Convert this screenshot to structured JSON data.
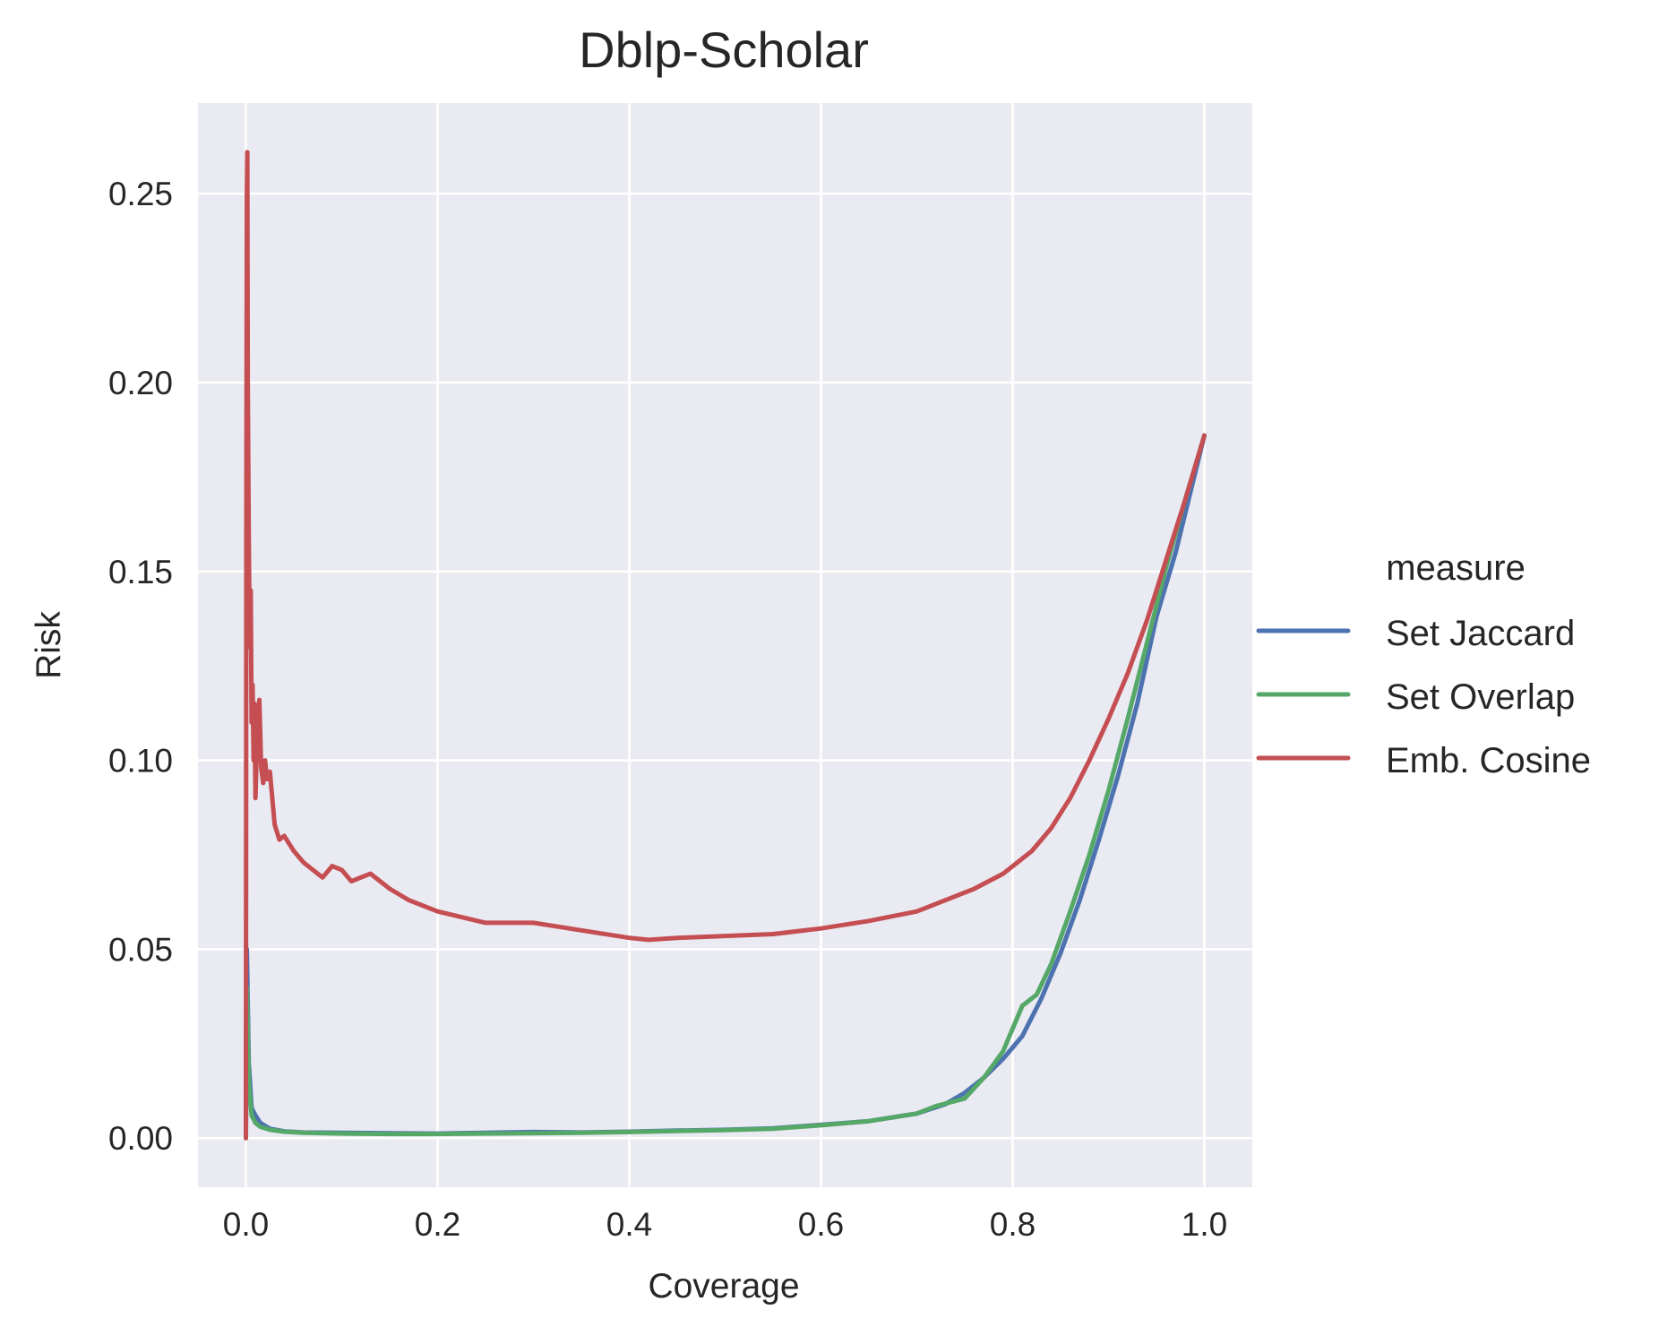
{
  "chart_data": {
    "type": "line",
    "title": "Dblp-Scholar",
    "xlabel": "Coverage",
    "ylabel": "Risk",
    "xlim": [
      -0.05,
      1.05
    ],
    "ylim": [
      -0.013,
      0.274
    ],
    "xticks": [
      0.0,
      0.2,
      0.4,
      0.6,
      0.8,
      1.0
    ],
    "xtick_labels": [
      "0.0",
      "0.2",
      "0.4",
      "0.6",
      "0.8",
      "1.0"
    ],
    "yticks": [
      0.0,
      0.05,
      0.1,
      0.15,
      0.2,
      0.25
    ],
    "ytick_labels": [
      "0.00",
      "0.05",
      "0.10",
      "0.15",
      "0.20",
      "0.25"
    ],
    "grid": true,
    "legend": {
      "title": "measure",
      "placement": "right outside"
    },
    "series": [
      {
        "name": "Set Jaccard",
        "color": "#4c72b0",
        "points": [
          [
            0.0,
            0.0
          ],
          [
            0.001,
            0.05
          ],
          [
            0.003,
            0.02
          ],
          [
            0.006,
            0.008
          ],
          [
            0.01,
            0.006
          ],
          [
            0.015,
            0.004
          ],
          [
            0.025,
            0.0025
          ],
          [
            0.04,
            0.0018
          ],
          [
            0.06,
            0.0015
          ],
          [
            0.1,
            0.0014
          ],
          [
            0.15,
            0.0013
          ],
          [
            0.2,
            0.0012
          ],
          [
            0.25,
            0.0014
          ],
          [
            0.3,
            0.0016
          ],
          [
            0.35,
            0.0015
          ],
          [
            0.4,
            0.0017
          ],
          [
            0.45,
            0.002
          ],
          [
            0.5,
            0.0022
          ],
          [
            0.55,
            0.0026
          ],
          [
            0.6,
            0.0035
          ],
          [
            0.65,
            0.0045
          ],
          [
            0.7,
            0.0065
          ],
          [
            0.73,
            0.009
          ],
          [
            0.75,
            0.012
          ],
          [
            0.77,
            0.016
          ],
          [
            0.79,
            0.021
          ],
          [
            0.81,
            0.027
          ],
          [
            0.83,
            0.037
          ],
          [
            0.85,
            0.049
          ],
          [
            0.87,
            0.063
          ],
          [
            0.89,
            0.079
          ],
          [
            0.91,
            0.096
          ],
          [
            0.93,
            0.115
          ],
          [
            0.95,
            0.138
          ],
          [
            0.97,
            0.155
          ],
          [
            1.0,
            0.186
          ]
        ]
      },
      {
        "name": "Set Overlap",
        "color": "#55a868",
        "points": [
          [
            0.0,
            0.0
          ],
          [
            0.001,
            0.04
          ],
          [
            0.003,
            0.015
          ],
          [
            0.006,
            0.006
          ],
          [
            0.01,
            0.004
          ],
          [
            0.015,
            0.003
          ],
          [
            0.025,
            0.0022
          ],
          [
            0.04,
            0.0017
          ],
          [
            0.06,
            0.0014
          ],
          [
            0.1,
            0.0012
          ],
          [
            0.15,
            0.0011
          ],
          [
            0.2,
            0.0011
          ],
          [
            0.25,
            0.0012
          ],
          [
            0.3,
            0.0013
          ],
          [
            0.35,
            0.0014
          ],
          [
            0.4,
            0.0016
          ],
          [
            0.45,
            0.0019
          ],
          [
            0.5,
            0.0021
          ],
          [
            0.55,
            0.0025
          ],
          [
            0.6,
            0.0034
          ],
          [
            0.65,
            0.0045
          ],
          [
            0.7,
            0.0065
          ],
          [
            0.72,
            0.0085
          ],
          [
            0.75,
            0.0105
          ],
          [
            0.77,
            0.016
          ],
          [
            0.79,
            0.023
          ],
          [
            0.8,
            0.029
          ],
          [
            0.81,
            0.035
          ],
          [
            0.825,
            0.038
          ],
          [
            0.84,
            0.046
          ],
          [
            0.86,
            0.06
          ],
          [
            0.88,
            0.075
          ],
          [
            0.9,
            0.092
          ],
          [
            0.92,
            0.111
          ],
          [
            0.94,
            0.131
          ],
          [
            0.96,
            0.151
          ],
          [
            0.98,
            0.169
          ],
          [
            1.0,
            0.186
          ]
        ]
      },
      {
        "name": "Emb. Cosine",
        "color": "#c44e52",
        "points": [
          [
            0.0,
            0.0
          ],
          [
            0.0005,
            0.17
          ],
          [
            0.001,
            0.25
          ],
          [
            0.0015,
            0.261
          ],
          [
            0.002,
            0.2
          ],
          [
            0.003,
            0.16
          ],
          [
            0.004,
            0.13
          ],
          [
            0.005,
            0.145
          ],
          [
            0.006,
            0.11
          ],
          [
            0.007,
            0.12
          ],
          [
            0.008,
            0.1
          ],
          [
            0.009,
            0.115
          ],
          [
            0.01,
            0.09
          ],
          [
            0.012,
            0.108
          ],
          [
            0.014,
            0.116
          ],
          [
            0.016,
            0.098
          ],
          [
            0.018,
            0.094
          ],
          [
            0.02,
            0.1
          ],
          [
            0.022,
            0.095
          ],
          [
            0.025,
            0.097
          ],
          [
            0.03,
            0.083
          ],
          [
            0.035,
            0.079
          ],
          [
            0.04,
            0.08
          ],
          [
            0.05,
            0.076
          ],
          [
            0.06,
            0.073
          ],
          [
            0.07,
            0.071
          ],
          [
            0.08,
            0.069
          ],
          [
            0.09,
            0.072
          ],
          [
            0.1,
            0.071
          ],
          [
            0.11,
            0.068
          ],
          [
            0.13,
            0.07
          ],
          [
            0.15,
            0.066
          ],
          [
            0.17,
            0.063
          ],
          [
            0.2,
            0.06
          ],
          [
            0.25,
            0.057
          ],
          [
            0.3,
            0.057
          ],
          [
            0.35,
            0.055
          ],
          [
            0.4,
            0.053
          ],
          [
            0.42,
            0.0525
          ],
          [
            0.45,
            0.053
          ],
          [
            0.5,
            0.0535
          ],
          [
            0.55,
            0.054
          ],
          [
            0.6,
            0.0555
          ],
          [
            0.65,
            0.0575
          ],
          [
            0.7,
            0.06
          ],
          [
            0.73,
            0.063
          ],
          [
            0.76,
            0.066
          ],
          [
            0.79,
            0.07
          ],
          [
            0.82,
            0.076
          ],
          [
            0.84,
            0.082
          ],
          [
            0.86,
            0.09
          ],
          [
            0.88,
            0.1
          ],
          [
            0.9,
            0.111
          ],
          [
            0.92,
            0.123
          ],
          [
            0.94,
            0.137
          ],
          [
            0.96,
            0.153
          ],
          [
            0.98,
            0.169
          ],
          [
            1.0,
            0.186
          ]
        ]
      }
    ]
  }
}
